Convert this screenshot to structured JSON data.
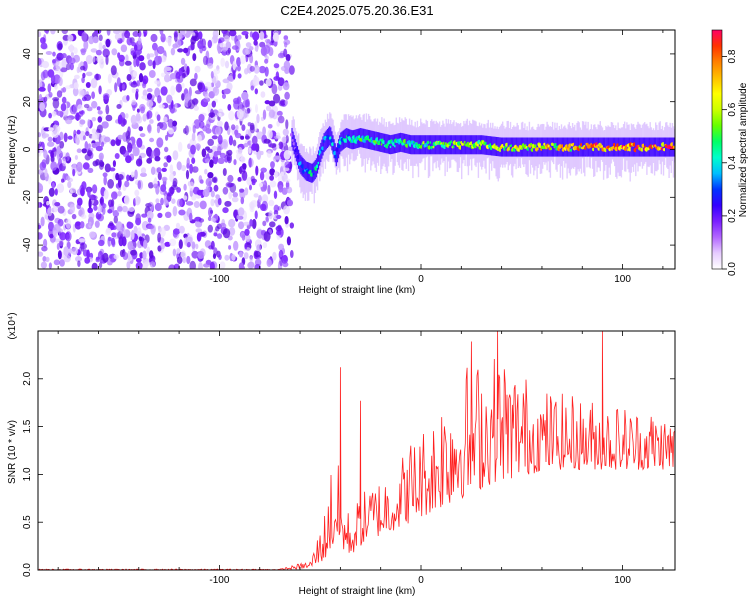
{
  "title": "C2E4.2025.075.20.36.E31",
  "chart_data": [
    {
      "type": "heatmap",
      "xlabel": "Height of straight line (km)",
      "ylabel": "Frequency (Hz)",
      "xlim": [
        -190,
        126
      ],
      "ylim": [
        -50,
        50
      ],
      "xticks": [
        -100,
        0,
        100
      ],
      "yticks": [
        -40,
        -20,
        0,
        20,
        40
      ],
      "colorbar": {
        "label": "Normalized spectral amplitude",
        "range": [
          0,
          0.9
        ],
        "ticks": [
          0.0,
          0.2,
          0.4,
          0.6,
          0.8
        ],
        "colors": [
          "#ffffff",
          "#e6ccff",
          "#b266ff",
          "#7a1fff",
          "#3300ff",
          "#0033ff",
          "#00bfff",
          "#00ffcc",
          "#00ff66",
          "#66ff00",
          "#ccff00",
          "#ffff00",
          "#ffbf00",
          "#ff8000",
          "#ff3300",
          "#ff0066"
        ]
      },
      "noise_region_x": [
        -190,
        -64
      ],
      "ridge": {
        "x": [
          -64,
          -60,
          -57,
          -54,
          -52,
          -50,
          -48,
          -45,
          -42,
          -40,
          -37,
          -34,
          -30,
          -25,
          -20,
          -15,
          -10,
          -5,
          0,
          10,
          20,
          30,
          40,
          50,
          60,
          70,
          80,
          90,
          100,
          110,
          120,
          126
        ],
        "freq": [
          5,
          -6,
          -9,
          -10,
          -8,
          -2,
          3,
          6,
          -3,
          3,
          5,
          4,
          5,
          4,
          3,
          2,
          3,
          2,
          2,
          2,
          2,
          2,
          1,
          1,
          1,
          1,
          1,
          1,
          1,
          1,
          1,
          1
        ],
        "amplitude": [
          0.1,
          0.3,
          0.35,
          0.4,
          0.4,
          0.35,
          0.35,
          0.4,
          0.3,
          0.35,
          0.4,
          0.4,
          0.45,
          0.45,
          0.45,
          0.45,
          0.45,
          0.45,
          0.5,
          0.5,
          0.55,
          0.55,
          0.6,
          0.6,
          0.65,
          0.65,
          0.7,
          0.7,
          0.75,
          0.75,
          0.8,
          0.8
        ]
      }
    },
    {
      "type": "line",
      "xlabel": "Height of straight line (km)",
      "ylabel": "SNR (10 * v/v)",
      "multiplier_label": "(x10⁴)",
      "xlim": [
        -190,
        126
      ],
      "ylim": [
        0,
        2.5
      ],
      "xticks": [
        -100,
        0,
        100
      ],
      "yticks": [
        0.0,
        0.5,
        1.0,
        1.5,
        2.0
      ],
      "series": [
        {
          "color": "#ff2020",
          "envelope_x": [
            -190,
            -70,
            -55,
            -48,
            -45,
            -42,
            -40,
            -38,
            -35,
            -30,
            -25,
            -20,
            -15,
            -10,
            -5,
            0,
            5,
            10,
            15,
            20,
            25,
            30,
            35,
            40,
            45,
            50,
            55,
            60,
            65,
            70,
            75,
            80,
            85,
            90,
            95,
            100,
            105,
            110,
            115,
            120,
            126
          ],
          "envelope_lo": [
            0.0,
            0.0,
            0.02,
            0.1,
            0.2,
            0.25,
            0.2,
            0.2,
            0.15,
            0.25,
            0.35,
            0.35,
            0.4,
            0.45,
            0.5,
            0.55,
            0.6,
            0.65,
            0.7,
            0.75,
            0.8,
            0.85,
            0.9,
            0.95,
            0.95,
            1.0,
            1.0,
            1.05,
            1.05,
            1.05,
            1.05,
            1.05,
            1.05,
            1.05,
            1.05,
            1.05,
            1.05,
            1.05,
            1.05,
            1.05,
            1.05
          ],
          "envelope_hi": [
            0.01,
            0.01,
            0.1,
            0.6,
            1.1,
            1.3,
            0.9,
            0.7,
            0.6,
            0.8,
            0.9,
            1.0,
            1.1,
            1.2,
            1.4,
            1.5,
            1.6,
            1.9,
            2.1,
            2.2,
            2.2,
            2.25,
            2.3,
            2.3,
            2.2,
            2.1,
            2.0,
            1.9,
            1.9,
            1.85,
            1.85,
            1.8,
            1.8,
            1.8,
            1.75,
            1.75,
            1.7,
            1.7,
            1.7,
            1.65,
            1.6
          ],
          "peaks": [
            {
              "x": -40,
              "y": 2.12
            },
            {
              "x": -30,
              "y": 1.77
            },
            {
              "x": 25,
              "y": 2.39
            },
            {
              "x": 38,
              "y": 2.5
            },
            {
              "x": 90,
              "y": 2.5
            }
          ]
        }
      ]
    }
  ]
}
